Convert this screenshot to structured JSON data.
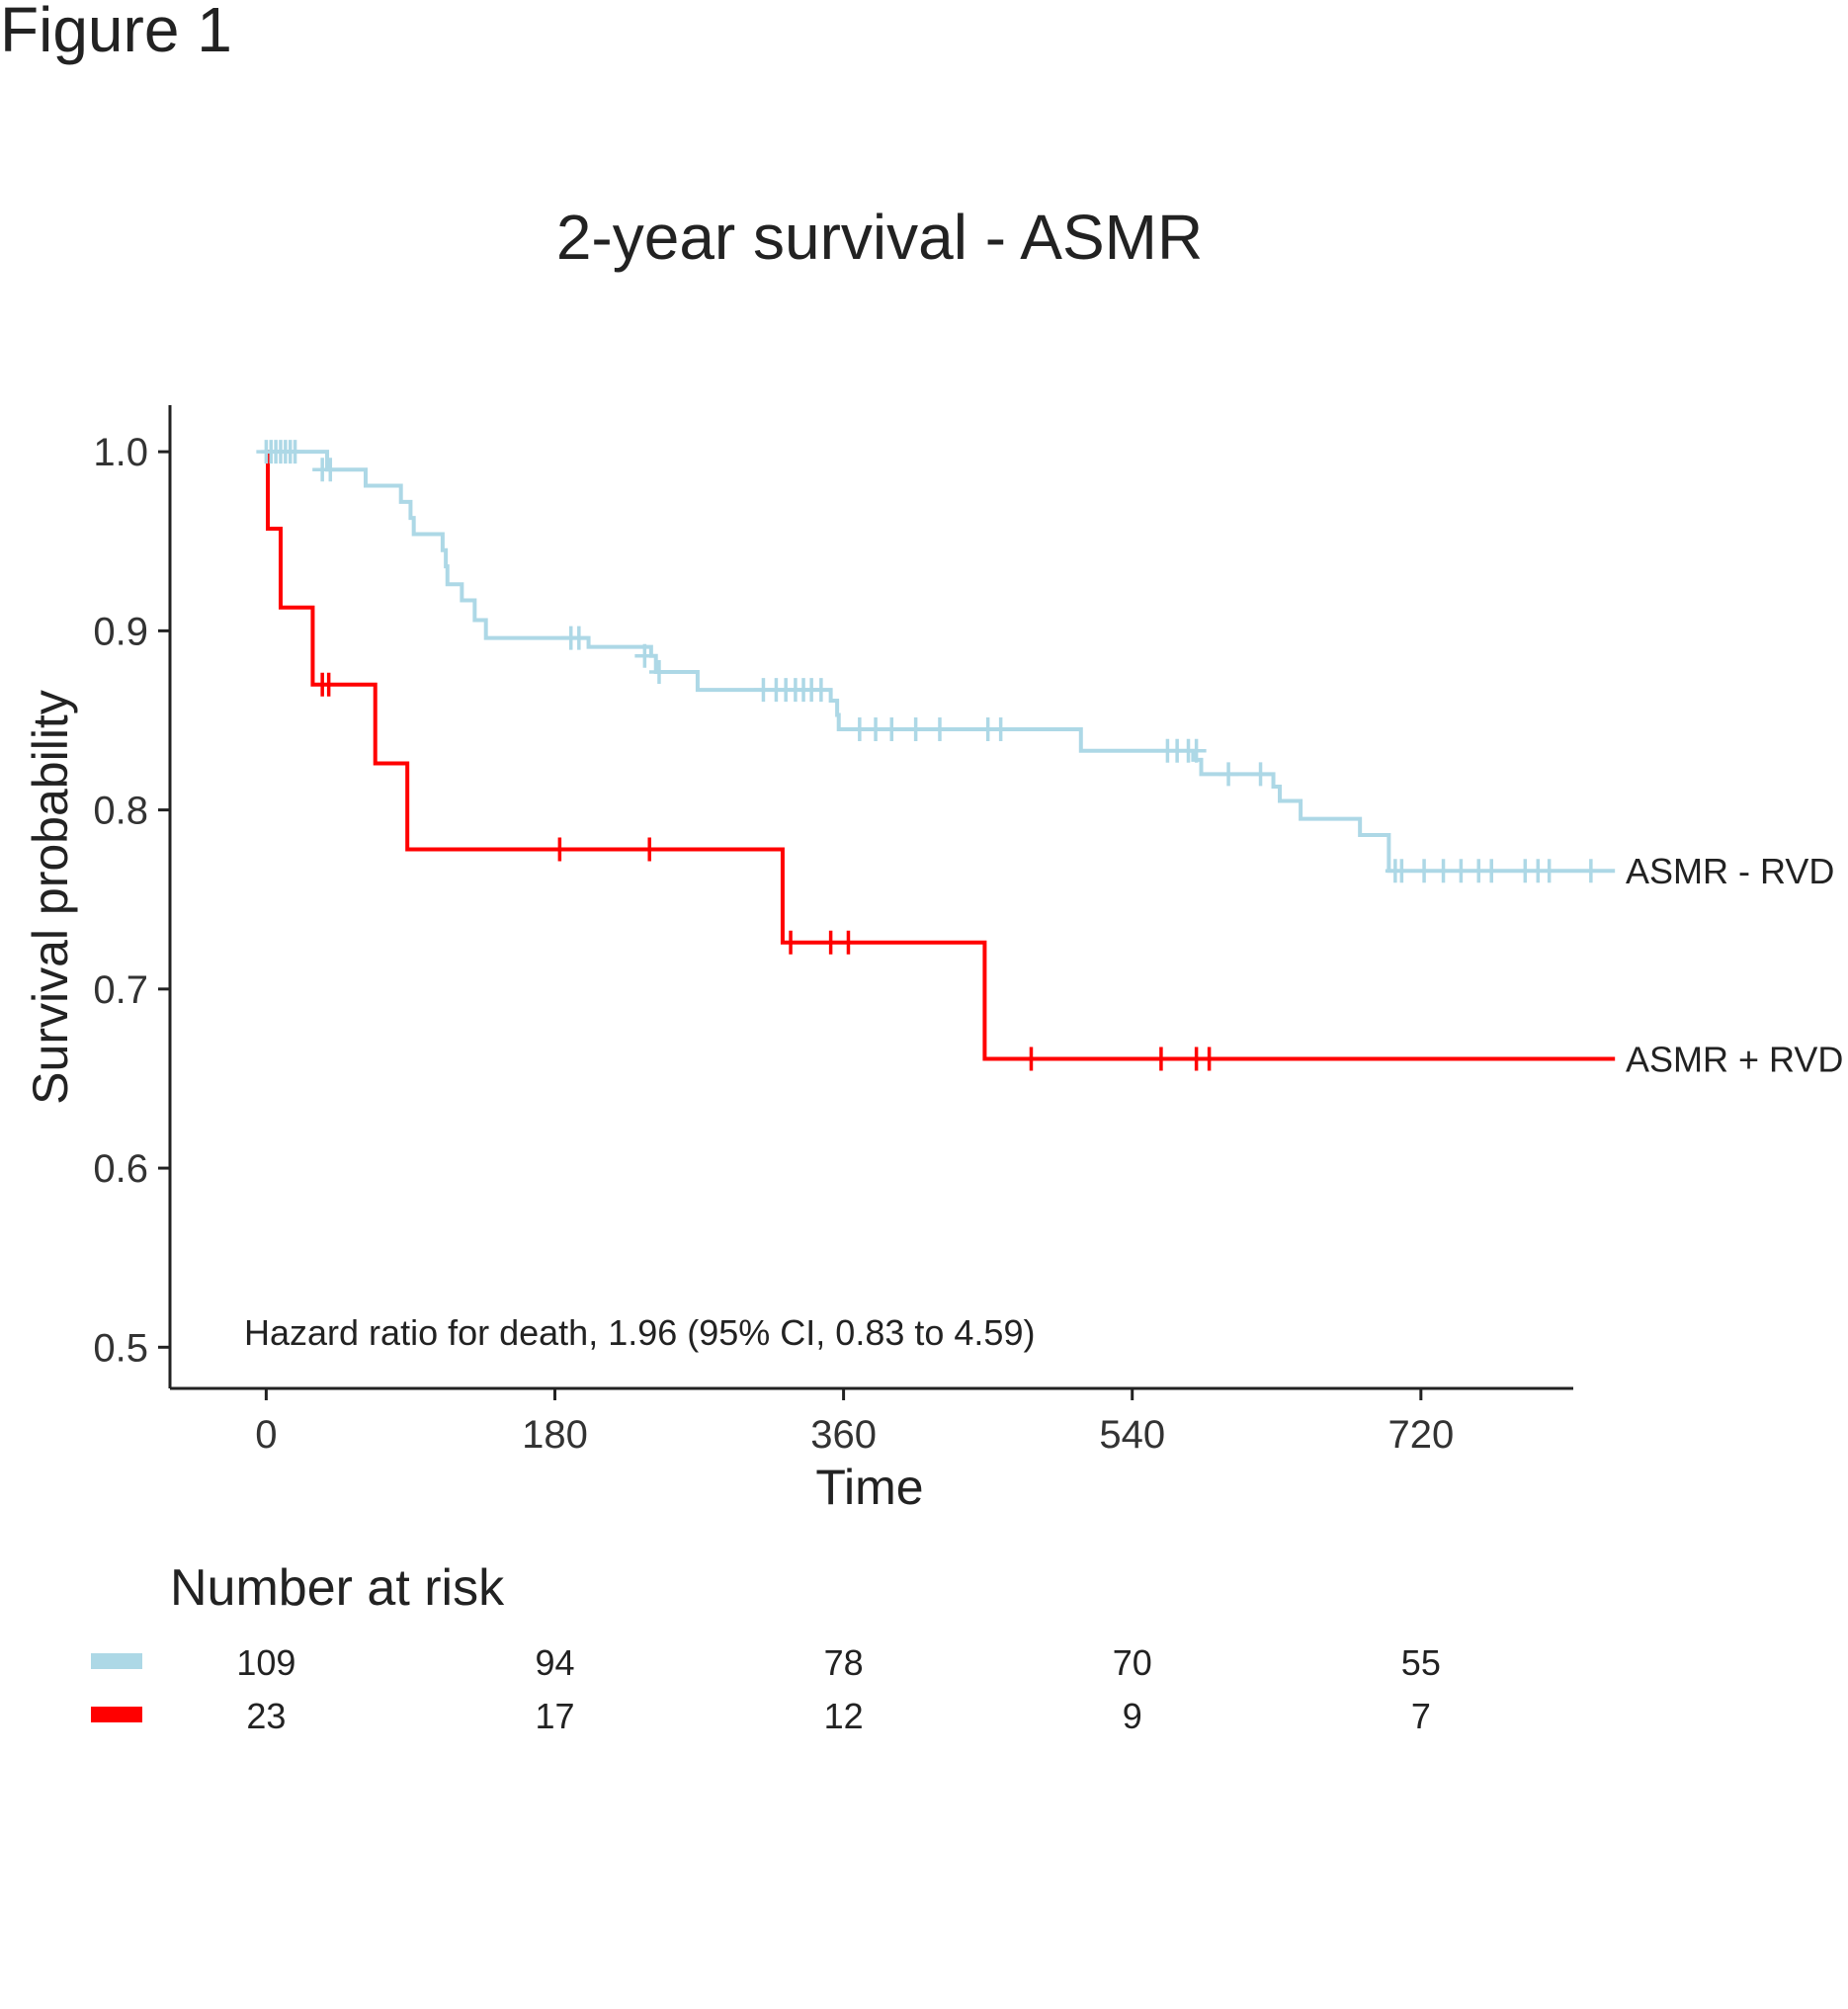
{
  "figure_label": "Figure 1",
  "colors": {
    "group1": "#add8e6",
    "group2": "#ff0000",
    "axis": "#222222",
    "text": "#222222"
  },
  "chart_data": {
    "type": "line",
    "subtype": "kaplan-meier",
    "title": "2-year survival - ASMR",
    "xlabel": "Time",
    "ylabel": "Survival probability",
    "xlim": [
      -60,
      815
    ],
    "ylim": [
      0.477,
      1.026
    ],
    "xticks": [
      0,
      180,
      360,
      540,
      720
    ],
    "yticks": [
      0.5,
      0.6,
      0.7,
      0.8,
      0.9,
      1.0
    ],
    "ytick_labels": [
      "0.5",
      "0.6",
      "0.7",
      "0.8",
      "0.9",
      "1.0"
    ],
    "annotation": "Hazard ratio for death, 1.96 (95% CI, 0.83 to 4.59)",
    "grid": false,
    "series": [
      {
        "name": "ASMR - RVD",
        "color": "#add8e6",
        "steps": [
          [
            0,
            1.0
          ],
          [
            38,
            0.99
          ],
          [
            62,
            0.981
          ],
          [
            84,
            0.972
          ],
          [
            90,
            0.963
          ],
          [
            92,
            0.954
          ],
          [
            110,
            0.945
          ],
          [
            112,
            0.936
          ],
          [
            113,
            0.926
          ],
          [
            122,
            0.917
          ],
          [
            130,
            0.906
          ],
          [
            137,
            0.896
          ],
          [
            201,
            0.891
          ],
          [
            240,
            0.886
          ],
          [
            243,
            0.877
          ],
          [
            269,
            0.867
          ],
          [
            352,
            0.861
          ],
          [
            356,
            0.853
          ],
          [
            357,
            0.845
          ],
          [
            508,
            0.833
          ],
          [
            578,
            0.828
          ],
          [
            583,
            0.82
          ],
          [
            628,
            0.813
          ],
          [
            632,
            0.805
          ],
          [
            645,
            0.795
          ],
          [
            682,
            0.786
          ],
          [
            700,
            0.766
          ],
          [
            841,
            0.766
          ]
        ],
        "censored": [
          [
            0,
            1.0
          ],
          [
            3,
            1.0
          ],
          [
            6,
            1.0
          ],
          [
            9,
            1.0
          ],
          [
            12,
            1.0
          ],
          [
            15,
            1.0
          ],
          [
            18,
            1.0
          ],
          [
            35,
            0.99
          ],
          [
            40,
            0.99
          ],
          [
            190,
            0.896
          ],
          [
            195,
            0.896
          ],
          [
            236,
            0.886
          ],
          [
            245,
            0.877
          ],
          [
            310,
            0.867
          ],
          [
            318,
            0.867
          ],
          [
            324,
            0.867
          ],
          [
            330,
            0.867
          ],
          [
            335,
            0.867
          ],
          [
            340,
            0.867
          ],
          [
            346,
            0.867
          ],
          [
            370,
            0.845
          ],
          [
            380,
            0.845
          ],
          [
            390,
            0.845
          ],
          [
            405,
            0.845
          ],
          [
            420,
            0.845
          ],
          [
            450,
            0.845
          ],
          [
            458,
            0.845
          ],
          [
            562,
            0.833
          ],
          [
            568,
            0.833
          ],
          [
            575,
            0.833
          ],
          [
            580,
            0.833
          ],
          [
            600,
            0.82
          ],
          [
            620,
            0.82
          ],
          [
            704,
            0.766
          ],
          [
            708,
            0.766
          ],
          [
            722,
            0.766
          ],
          [
            734,
            0.766
          ],
          [
            745,
            0.766
          ],
          [
            756,
            0.766
          ],
          [
            764,
            0.766
          ],
          [
            785,
            0.766
          ],
          [
            793,
            0.766
          ],
          [
            800,
            0.766
          ],
          [
            826,
            0.766
          ]
        ]
      },
      {
        "name": "ASMR + RVD",
        "color": "#ff0000",
        "steps": [
          [
            0,
            1.0
          ],
          [
            1,
            0.957
          ],
          [
            9,
            0.913
          ],
          [
            29,
            0.87
          ],
          [
            68,
            0.826
          ],
          [
            88,
            0.778
          ],
          [
            322,
            0.726
          ],
          [
            448,
            0.661
          ],
          [
            841,
            0.661
          ]
        ],
        "censored": [
          [
            35,
            0.87
          ],
          [
            39,
            0.87
          ],
          [
            183,
            0.778
          ],
          [
            239,
            0.778
          ],
          [
            327,
            0.726
          ],
          [
            352,
            0.726
          ],
          [
            363,
            0.726
          ],
          [
            477,
            0.661
          ],
          [
            558,
            0.661
          ],
          [
            580,
            0.661
          ],
          [
            588,
            0.661
          ]
        ]
      }
    ],
    "risk_table": {
      "title": "Number at risk",
      "times": [
        0,
        180,
        360,
        540,
        720
      ],
      "rows": [
        {
          "group": "ASMR - RVD",
          "color": "#add8e6",
          "values": [
            "109",
            "94",
            "78",
            "70",
            "55"
          ]
        },
        {
          "group": "ASMR + RVD",
          "color": "#ff0000",
          "values": [
            "23",
            "17",
            "12",
            "9",
            "7"
          ]
        }
      ]
    }
  }
}
